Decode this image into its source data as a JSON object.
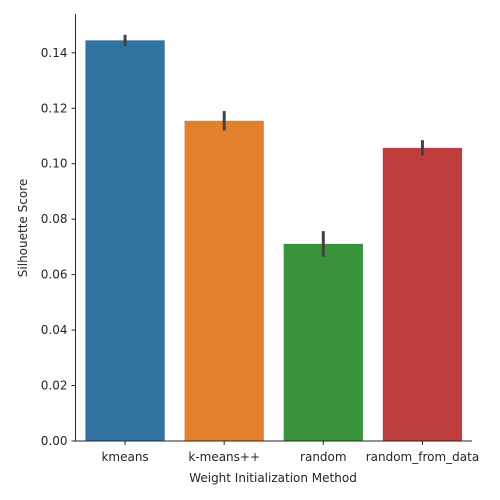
{
  "chart_data": {
    "type": "bar",
    "xlabel": "Weight Initialization Method",
    "ylabel": "Silhouette Score",
    "categories": [
      "kmeans",
      "k-means++",
      "random",
      "random_from_data"
    ],
    "values": [
      0.1445,
      0.1155,
      0.0711,
      0.1057
    ],
    "error_low": [
      0.1425,
      0.112,
      0.0665,
      0.103
    ],
    "error_high": [
      0.1465,
      0.119,
      0.0757,
      0.1085
    ],
    "colors": [
      "#3274a1",
      "#e1812c",
      "#3a923a",
      "#c03d3e"
    ],
    "ylim": [
      0,
      0.154
    ],
    "yticks": [
      0.0,
      0.02,
      0.04,
      0.06,
      0.08,
      0.1,
      0.12,
      0.14
    ],
    "ytick_labels": [
      "0.00",
      "0.02",
      "0.04",
      "0.06",
      "0.08",
      "0.10",
      "0.12",
      "0.14"
    ],
    "grid": false,
    "legend": "none"
  }
}
